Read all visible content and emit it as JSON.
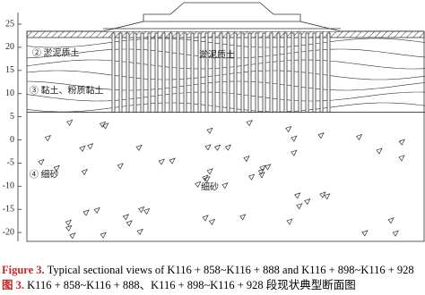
{
  "y_axis": {
    "ticks": [
      25,
      20,
      15,
      10,
      5,
      0,
      -5,
      -10,
      -15,
      -20
    ]
  },
  "labels": {
    "layer2": "② 淤泥质土",
    "layer2_center": "淤泥质土",
    "layer3": "③ 黏土、粉质黏土",
    "layer4": "④ 细砂",
    "layer4_center": "细砂"
  },
  "caption": {
    "figure_label": "Figure 3.",
    "figure_text": "Typical sectional views of K116 + 858~K116 + 888 and K116 + 898~K116 + 928",
    "cn_label": "图 3.",
    "cn_text": "K116 + 858~K116 + 888、K116 + 898~K116 + 928 段现状典型断面图"
  }
}
